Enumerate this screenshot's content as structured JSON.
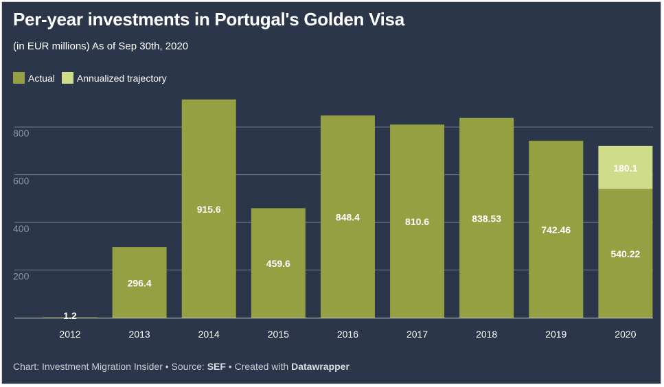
{
  "title": "Per-year investments in Portugal's Golden Visa",
  "subtitle": "(in EUR millions) As of Sep 30th, 2020",
  "legend": {
    "actual_label": "Actual",
    "annualized_label": "Annualized trajectory"
  },
  "footer": {
    "prefix": "Chart: Investment Migration Insider • Source: ",
    "source": "SEF",
    "middle": " • Created with ",
    "tool": "Datawrapper"
  },
  "colors": {
    "background": "#2b364a",
    "actual": "#95a043",
    "annualized": "#cfdd8a",
    "grid": "#8a93a0",
    "tick_text": "#8c95a2"
  },
  "chart_data": {
    "type": "bar",
    "stacked": true,
    "categories": [
      "2012",
      "2013",
      "2014",
      "2015",
      "2016",
      "2017",
      "2018",
      "2019",
      "2020"
    ],
    "series": [
      {
        "name": "Actual",
        "values": [
          1.2,
          296.4,
          915.6,
          459.6,
          848.4,
          810.6,
          838.53,
          742.46,
          540.22
        ],
        "labels": [
          "1.2",
          "296.4",
          "915.6",
          "459.6",
          "848.4",
          "810.6",
          "838.53",
          "742.46",
          "540.22"
        ]
      },
      {
        "name": "Annualized trajectory",
        "values": [
          0,
          0,
          0,
          0,
          0,
          0,
          0,
          0,
          180.1
        ],
        "labels": [
          "",
          "",
          "",
          "",
          "",
          "",
          "",
          "",
          "180.1"
        ]
      }
    ],
    "ylim": [
      0,
      915.6
    ],
    "y_ticks": [
      200,
      400,
      600,
      800
    ],
    "grid": true,
    "legend_position": "top-left"
  }
}
